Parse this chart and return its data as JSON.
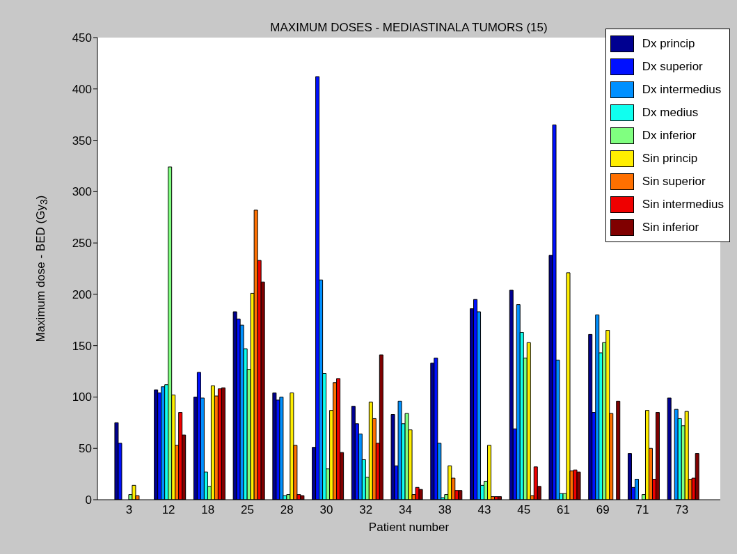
{
  "chart_data": {
    "type": "bar",
    "title": "MAXIMUM DOSES - MEDIASTINALA TUMORS (15)",
    "xlabel": "Patient number",
    "ylabel": "Maximum dose - BED (Gy$_{3}$)",
    "categories": [
      "3",
      "12",
      "18",
      "25",
      "28",
      "30",
      "32",
      "34",
      "38",
      "43",
      "45",
      "61",
      "69",
      "71",
      "73"
    ],
    "ylim": [
      0,
      450
    ],
    "yticks": [
      0,
      50,
      100,
      150,
      200,
      250,
      300,
      350,
      400,
      450
    ],
    "legend": "top right",
    "series": [
      {
        "name": "Dx princip",
        "color": "#000090",
        "values": [
          75,
          107,
          100,
          183,
          104,
          51,
          91,
          83,
          133,
          186,
          204,
          238,
          161,
          45,
          99
        ]
      },
      {
        "name": "Dx superior",
        "color": "#0010ff",
        "values": [
          55,
          104,
          124,
          176,
          97,
          412,
          74,
          33,
          138,
          195,
          69,
          365,
          85,
          12,
          0
        ]
      },
      {
        "name": "Dx intermedius",
        "color": "#0090ff",
        "values": [
          0,
          110,
          99,
          170,
          100,
          214,
          64,
          96,
          55,
          183,
          190,
          136,
          180,
          20,
          88
        ]
      },
      {
        "name": "Dx medius",
        "color": "#10ffef",
        "values": [
          0,
          112,
          27,
          147,
          4,
          123,
          39,
          74,
          2,
          14,
          163,
          6,
          143,
          null,
          79
        ]
      },
      {
        "name": "Dx inferior",
        "color": "#80ff80",
        "values": [
          5,
          324,
          13,
          127,
          5,
          30,
          22,
          84,
          5,
          18,
          138,
          6,
          153,
          5,
          72
        ]
      },
      {
        "name": "Sin princip",
        "color": "#ffee00",
        "values": [
          14,
          102,
          111,
          201,
          104,
          87,
          95,
          68,
          33,
          53,
          153,
          221,
          165,
          87,
          86
        ]
      },
      {
        "name": "Sin superior",
        "color": "#ff7000",
        "values": [
          4,
          53,
          101,
          282,
          53,
          114,
          79,
          5,
          21,
          3,
          4,
          28,
          84,
          50,
          20
        ]
      },
      {
        "name": "Sin intermedius",
        "color": "#ef0000",
        "values": [
          0,
          85,
          108,
          233,
          5,
          118,
          55,
          12,
          9,
          3,
          32,
          29,
          0,
          20,
          21
        ]
      },
      {
        "name": "Sin inferior",
        "color": "#800000",
        "values": [
          0,
          63,
          109,
          212,
          4,
          46,
          141,
          10,
          9,
          3,
          13,
          27,
          96,
          85,
          45
        ]
      }
    ]
  }
}
